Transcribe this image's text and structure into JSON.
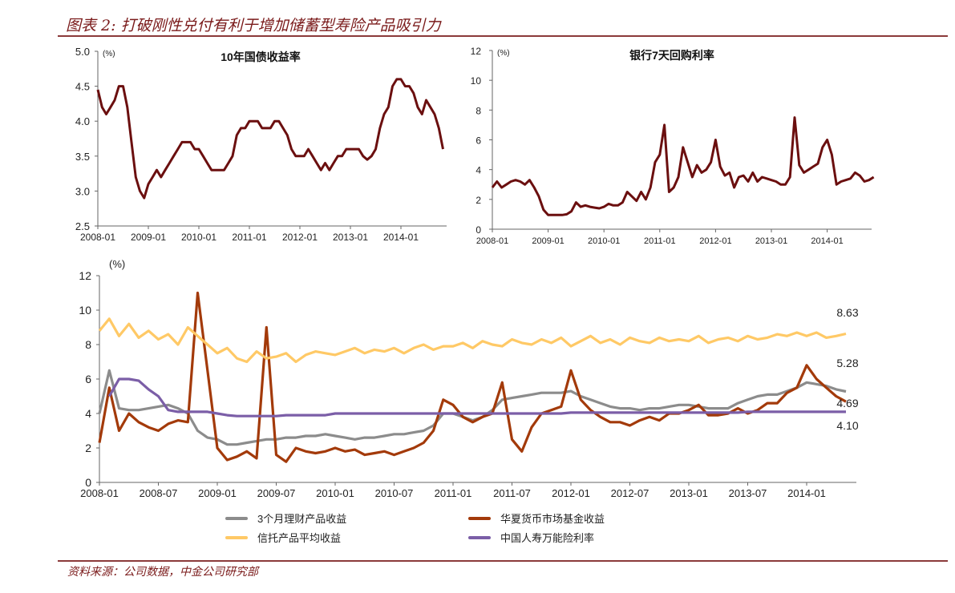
{
  "header": {
    "title": "图表 2: 打破刚性兑付有利于增加储蓄型寿险产品吸引力"
  },
  "footer": {
    "source": "资料来源：公司数据，中金公司研究部"
  },
  "chart_data": [
    {
      "type": "line",
      "title": "10年国债收益率",
      "unit": "(%)",
      "ylim": [
        2.5,
        5.0
      ],
      "yticks": [
        "5.0",
        "4.5",
        "4.0",
        "3.5",
        "3.0",
        "2.5"
      ],
      "xticks": [
        "2008-01",
        "2009-01",
        "2010-01",
        "2011-01",
        "2012-01",
        "2013-01",
        "2014-01"
      ],
      "x_start": "2008-01",
      "x_months": 82,
      "series": [
        {
          "name": "10年国债收益率",
          "color": "#6b0f0f",
          "values": [
            4.45,
            4.2,
            4.1,
            4.2,
            4.3,
            4.5,
            4.5,
            4.2,
            3.7,
            3.2,
            3.0,
            2.9,
            3.1,
            3.2,
            3.3,
            3.2,
            3.3,
            3.4,
            3.5,
            3.6,
            3.7,
            3.7,
            3.7,
            3.6,
            3.6,
            3.5,
            3.4,
            3.3,
            3.3,
            3.3,
            3.3,
            3.4,
            3.5,
            3.8,
            3.9,
            3.9,
            4.0,
            4.0,
            4.0,
            3.9,
            3.9,
            3.9,
            4.0,
            4.0,
            3.9,
            3.8,
            3.6,
            3.5,
            3.5,
            3.5,
            3.6,
            3.5,
            3.4,
            3.3,
            3.4,
            3.3,
            3.4,
            3.5,
            3.5,
            3.6,
            3.6,
            3.6,
            3.6,
            3.5,
            3.45,
            3.5,
            3.6,
            3.9,
            4.1,
            4.2,
            4.5,
            4.6,
            4.6,
            4.5,
            4.5,
            4.4,
            4.2,
            4.1,
            4.3,
            4.2,
            4.1,
            3.9,
            3.6
          ]
        }
      ]
    },
    {
      "type": "line",
      "title": "银行7天回购利率",
      "unit": "(%)",
      "ylim": [
        0,
        12
      ],
      "yticks": [
        "12",
        "10",
        "8",
        "6",
        "4",
        "2",
        "0"
      ],
      "xticks": [
        "2008-01",
        "2009-01",
        "2010-01",
        "2011-01",
        "2012-01",
        "2013-01",
        "2014-01"
      ],
      "x_start": "2008-01",
      "x_months": 82,
      "series": [
        {
          "name": "银行7天回购利率",
          "color": "#6b0f0f",
          "values": [
            2.8,
            3.2,
            2.8,
            3.0,
            3.2,
            3.3,
            3.2,
            3.0,
            3.3,
            2.8,
            2.2,
            1.3,
            0.95,
            0.95,
            0.95,
            0.95,
            1.0,
            1.2,
            1.8,
            1.5,
            1.6,
            1.5,
            1.45,
            1.4,
            1.5,
            1.7,
            1.6,
            1.6,
            1.8,
            2.5,
            2.2,
            1.9,
            2.5,
            2.0,
            2.8,
            4.5,
            5.0,
            7.0,
            2.5,
            2.8,
            3.5,
            5.5,
            4.5,
            3.5,
            4.3,
            3.8,
            4.0,
            4.5,
            6.0,
            4.2,
            3.6,
            3.8,
            2.8,
            3.5,
            3.6,
            3.2,
            3.8,
            3.2,
            3.5,
            3.4,
            3.3,
            3.2,
            3.0,
            3.0,
            3.5,
            7.5,
            4.3,
            3.8,
            4.0,
            4.2,
            4.4,
            5.5,
            6.0,
            5.0,
            3.0,
            3.2,
            3.3,
            3.4,
            3.8,
            3.6,
            3.2,
            3.3,
            3.5
          ]
        }
      ]
    },
    {
      "type": "line",
      "title": "",
      "unit": "(%)",
      "ylim": [
        0,
        12
      ],
      "yticks": [
        "12",
        "10",
        "8",
        "6",
        "4",
        "2",
        "0"
      ],
      "xticks": [
        "2008-01",
        "2008-07",
        "2009-01",
        "2009-07",
        "2010-01",
        "2010-07",
        "2011-01",
        "2011-07",
        "2012-01",
        "2012-07",
        "2013-01",
        "2013-07",
        "2014-01"
      ],
      "x_start": "2008-01",
      "x_months": 78,
      "annotations": [
        "8.63",
        "5.28",
        "4.69",
        "4.10"
      ],
      "series": [
        {
          "name": "3个月理财产品收益",
          "color": "#8c8c8c",
          "values": [
            4.0,
            6.5,
            4.3,
            4.2,
            4.2,
            4.3,
            4.4,
            4.5,
            4.3,
            4.0,
            3.0,
            2.6,
            2.5,
            2.2,
            2.2,
            2.3,
            2.4,
            2.5,
            2.5,
            2.6,
            2.6,
            2.7,
            2.7,
            2.8,
            2.7,
            2.6,
            2.5,
            2.6,
            2.6,
            2.7,
            2.8,
            2.8,
            2.9,
            3.0,
            3.3,
            4.0,
            4.0,
            3.8,
            3.6,
            3.8,
            4.2,
            4.8,
            4.9,
            5.0,
            5.1,
            5.2,
            5.2,
            5.2,
            5.3,
            5.0,
            4.8,
            4.6,
            4.4,
            4.3,
            4.3,
            4.2,
            4.3,
            4.3,
            4.4,
            4.5,
            4.5,
            4.4,
            4.3,
            4.3,
            4.3,
            4.6,
            4.8,
            5.0,
            5.1,
            5.1,
            5.3,
            5.5,
            5.8,
            5.7,
            5.6,
            5.4,
            5.28
          ]
        },
        {
          "name": "华夏货币市场基金收益",
          "color": "#a33a0a",
          "values": [
            2.3,
            5.5,
            3.0,
            4.0,
            3.5,
            3.2,
            3.0,
            3.4,
            3.6,
            3.5,
            11,
            6.5,
            2.0,
            1.3,
            1.5,
            1.8,
            1.4,
            9,
            1.6,
            1.2,
            2.0,
            1.8,
            1.7,
            1.8,
            2.0,
            1.8,
            1.9,
            1.6,
            1.7,
            1.8,
            1.6,
            1.8,
            2.0,
            2.3,
            3.0,
            4.8,
            4.5,
            3.8,
            3.5,
            3.8,
            4.0,
            5.8,
            2.5,
            1.8,
            3.2,
            4.0,
            4.2,
            4.4,
            6.5,
            4.8,
            4.2,
            3.8,
            3.5,
            3.5,
            3.3,
            3.6,
            3.8,
            3.6,
            4.0,
            4.0,
            4.2,
            4.5,
            3.9,
            3.9,
            4.0,
            4.3,
            4.0,
            4.2,
            4.6,
            4.6,
            5.2,
            5.5,
            6.8,
            6.0,
            5.5,
            5.0,
            4.69
          ]
        },
        {
          "name": "信托产品平均收益",
          "color": "#ffc966",
          "values": [
            8.8,
            9.5,
            8.5,
            9.2,
            8.4,
            8.8,
            8.3,
            8.6,
            8.0,
            9.0,
            8.5,
            8.0,
            7.5,
            7.8,
            7.2,
            7.0,
            7.6,
            7.2,
            7.3,
            7.5,
            7.0,
            7.4,
            7.6,
            7.5,
            7.4,
            7.6,
            7.8,
            7.5,
            7.7,
            7.6,
            7.8,
            7.5,
            7.8,
            8.0,
            7.7,
            7.9,
            7.9,
            8.1,
            7.8,
            8.2,
            8.0,
            7.9,
            8.3,
            8.1,
            8.0,
            8.3,
            8.1,
            8.4,
            7.9,
            8.2,
            8.5,
            8.1,
            8.3,
            8.0,
            8.4,
            8.2,
            8.1,
            8.4,
            8.2,
            8.3,
            8.2,
            8.5,
            8.1,
            8.3,
            8.4,
            8.2,
            8.5,
            8.3,
            8.4,
            8.6,
            8.5,
            8.7,
            8.5,
            8.7,
            8.4,
            8.5,
            8.63
          ]
        },
        {
          "name": "中国人寿万能险利率",
          "color": "#7b5ea7",
          "values": [
            null,
            5.0,
            6.0,
            6.0,
            5.9,
            5.4,
            5.0,
            4.2,
            4.1,
            4.1,
            4.1,
            4.1,
            4.0,
            3.9,
            3.85,
            3.85,
            3.85,
            3.85,
            3.85,
            3.9,
            3.9,
            3.9,
            3.9,
            3.9,
            4.0,
            4.0,
            4.0,
            4.0,
            4.0,
            4.0,
            4.0,
            4.0,
            4.0,
            4.0,
            4.0,
            4.0,
            4.0,
            4.0,
            4.0,
            4.0,
            4.0,
            4.0,
            4.0,
            4.0,
            4.0,
            4.0,
            4.0,
            4.0,
            4.05,
            4.05,
            4.05,
            4.05,
            4.05,
            4.05,
            4.05,
            4.05,
            4.05,
            4.05,
            4.05,
            4.05,
            4.05,
            4.05,
            4.05,
            4.05,
            4.05,
            4.05,
            4.1,
            4.1,
            4.1,
            4.1,
            4.1,
            4.1,
            4.1,
            4.1,
            4.1,
            4.1,
            4.1
          ]
        }
      ]
    }
  ]
}
